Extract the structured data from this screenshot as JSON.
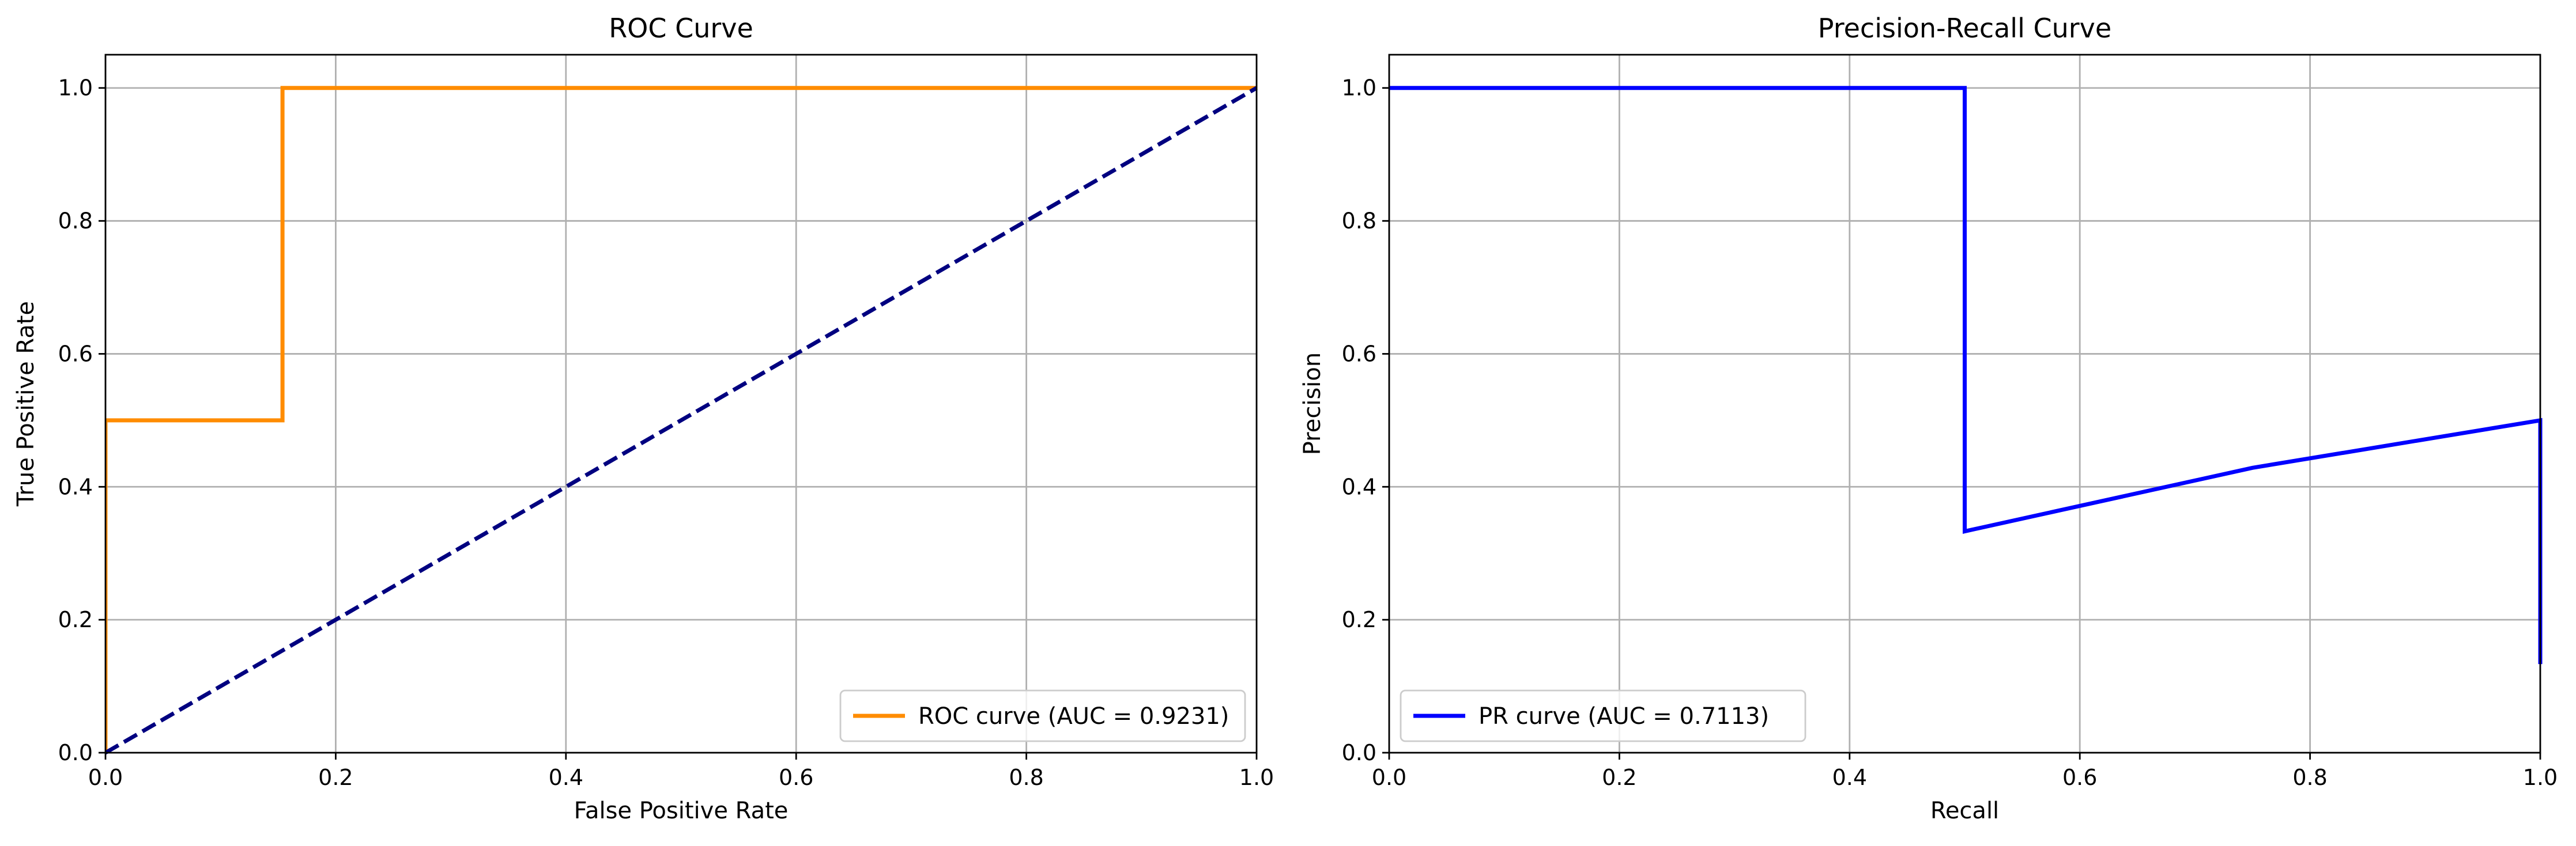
{
  "chart_data": [
    {
      "type": "line",
      "title": "ROC Curve",
      "xlabel": "False Positive Rate",
      "ylabel": "True Positive Rate",
      "xlim": [
        0.0,
        1.0
      ],
      "ylim": [
        0.0,
        1.05
      ],
      "xticks": [
        0.0,
        0.2,
        0.4,
        0.6,
        0.8,
        1.0
      ],
      "yticks": [
        0.0,
        0.2,
        0.4,
        0.6,
        0.8,
        1.0
      ],
      "xtick_labels": [
        "0.0",
        "0.2",
        "0.4",
        "0.6",
        "0.8",
        "1.0"
      ],
      "ytick_labels": [
        "0.0",
        "0.2",
        "0.4",
        "0.6",
        "0.8",
        "1.0"
      ],
      "grid": true,
      "legend_position": "lower-right",
      "series": [
        {
          "name": "ROC curve (AUC = 0.9231)",
          "color": "#ff8c00",
          "line_style": "solid",
          "in_legend": true,
          "x": [
            0.0,
            0.0,
            0.0,
            0.1538,
            0.1538,
            1.0
          ],
          "y": [
            0.0,
            0.5,
            0.5,
            0.5,
            1.0,
            1.0
          ]
        },
        {
          "name": "",
          "color": "#000080",
          "line_style": "dashed",
          "in_legend": false,
          "x": [
            0.0,
            1.0
          ],
          "y": [
            0.0,
            1.0
          ]
        }
      ]
    },
    {
      "type": "line",
      "title": "Precision-Recall Curve",
      "xlabel": "Recall",
      "ylabel": "Precision",
      "xlim": [
        0.0,
        1.0
      ],
      "ylim": [
        0.0,
        1.05
      ],
      "xticks": [
        0.0,
        0.2,
        0.4,
        0.6,
        0.8,
        1.0
      ],
      "yticks": [
        0.0,
        0.2,
        0.4,
        0.6,
        0.8,
        1.0
      ],
      "xtick_labels": [
        "0.0",
        "0.2",
        "0.4",
        "0.6",
        "0.8",
        "1.0"
      ],
      "ytick_labels": [
        "0.0",
        "0.2",
        "0.4",
        "0.6",
        "0.8",
        "1.0"
      ],
      "grid": true,
      "legend_position": "lower-left",
      "series": [
        {
          "name": "PR curve (AUC = 0.7113)",
          "color": "#0000ff",
          "line_style": "solid",
          "in_legend": true,
          "x": [
            0.0,
            0.5,
            0.5,
            0.75,
            1.0,
            1.0
          ],
          "y": [
            1.0,
            1.0,
            0.333,
            0.4286,
            0.5,
            0.1333
          ]
        }
      ]
    }
  ]
}
